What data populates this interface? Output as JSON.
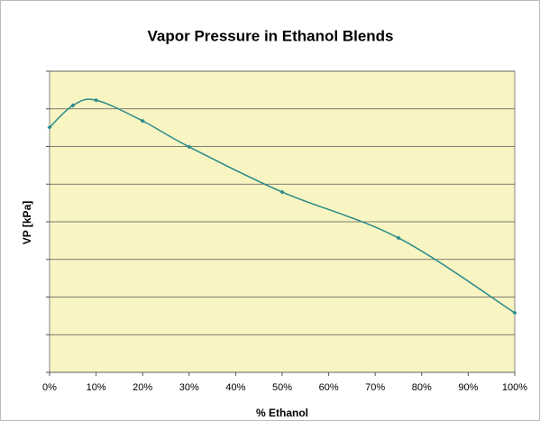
{
  "chart_data": {
    "type": "line",
    "title": "Vapor Pressure in Ethanol Blends",
    "x_label": "% Ethanol",
    "y_label": "VP [kPa]",
    "series": [
      {
        "name": "VP",
        "color": "#2a8a8a",
        "x": [
          0,
          5,
          10,
          20,
          30,
          50,
          75,
          100
        ],
        "values": [
          6.51,
          7.09,
          7.23,
          6.68,
          5.99,
          4.79,
          3.57,
          1.58
        ]
      }
    ],
    "xlim": [
      0,
      100
    ],
    "xticks": [
      {
        "value": 0,
        "label": "0%"
      },
      {
        "value": 10,
        "label": "10%"
      },
      {
        "value": 20,
        "label": "20%"
      },
      {
        "value": 30,
        "label": "30%"
      },
      {
        "value": 40,
        "label": "40%"
      },
      {
        "value": 50,
        "label": "50%"
      },
      {
        "value": 60,
        "label": "60%"
      },
      {
        "value": 70,
        "label": "70%"
      },
      {
        "value": 80,
        "label": "80%"
      },
      {
        "value": 90,
        "label": "90%"
      },
      {
        "value": 100,
        "label": "100%"
      }
    ],
    "ylim": [
      0,
      8
    ],
    "yticks": [
      0,
      1,
      2,
      3,
      4,
      5,
      6,
      7,
      8
    ],
    "grid": true,
    "plot_background": "#f8f5c2"
  }
}
